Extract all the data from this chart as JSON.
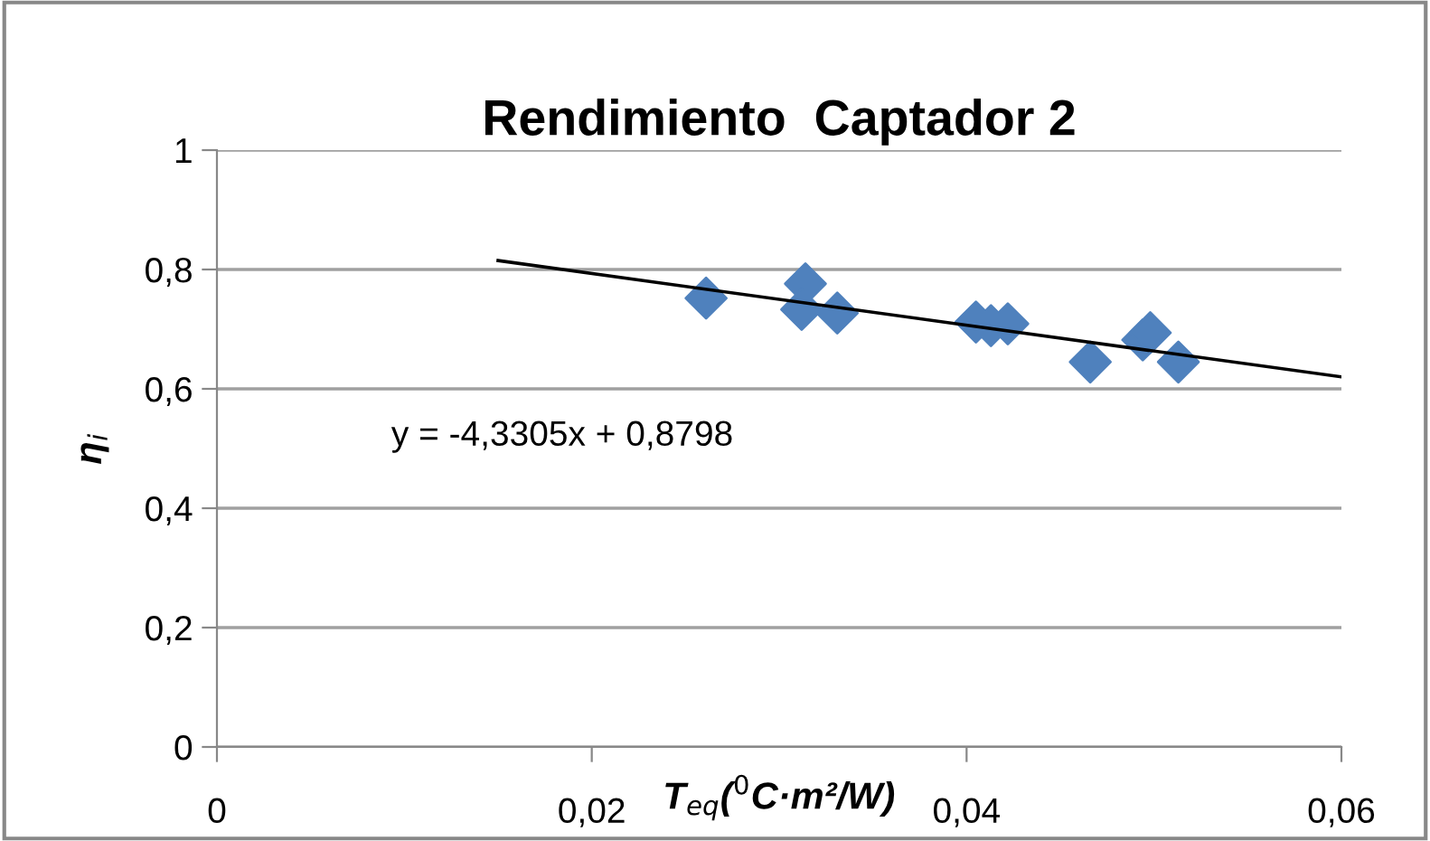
{
  "chart_data": {
    "type": "scatter",
    "title": "Rendimiento  Captador 2",
    "xlabel": "T$_{eq}$($^{0}$C·m²/W)",
    "ylabel": "η$_{i}$",
    "annotations": [
      "y = -4,3305x + 0,8798"
    ],
    "series": [
      {
        "color": "#4f81bd",
        "marker": "diamond",
        "x": [
          0.0261,
          0.0314,
          0.0312,
          0.0331,
          0.0405,
          0.0413,
          0.0422,
          0.0466,
          0.0494,
          0.0498,
          0.0513
        ],
        "values": [
          0.752,
          0.776,
          0.733,
          0.727,
          0.712,
          0.706,
          0.709,
          0.645,
          0.682,
          0.694,
          0.645
        ]
      },
      {
        "type": "line",
        "color": "#000000",
        "marker": "none",
        "x": [
          0.015,
          0.06
        ],
        "values": [
          0.815,
          0.62
        ]
      }
    ],
    "xlim": [
      0,
      0.06
    ],
    "xticks": [
      {
        "value": 0,
        "label": "0"
      },
      {
        "value": 0.02,
        "label": "0,02"
      },
      {
        "value": 0.04,
        "label": "0,04"
      },
      {
        "value": 0.06,
        "label": "0,06"
      }
    ],
    "ylim": [
      0,
      1
    ],
    "yticks": [
      {
        "value": 0,
        "label": "0"
      },
      {
        "value": 0.2,
        "label": "0,2"
      },
      {
        "value": 0.4,
        "label": "0,4"
      },
      {
        "value": 0.6,
        "label": "0,6"
      },
      {
        "value": 0.8,
        "label": "0,8"
      },
      {
        "value": 1,
        "label": "1"
      }
    ],
    "grid": "y",
    "legend": false
  }
}
